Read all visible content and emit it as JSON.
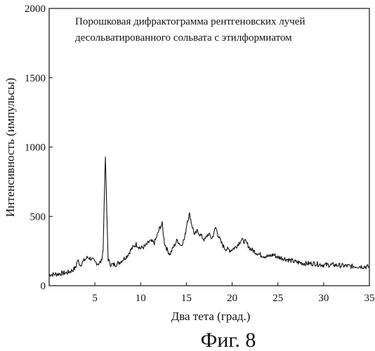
{
  "figure_caption": "Фиг. 8",
  "chart_data": {
    "type": "line",
    "title": "",
    "annotation": [
      "Порошковая дифрактограмма рентгеновских лучей",
      "десольватированного сольвата с этилформиатом"
    ],
    "xlabel": "Два тета (град.)",
    "ylabel": "Интенсивность (импульсы)",
    "xlim": [
      0,
      35
    ],
    "ylim": [
      0,
      2000
    ],
    "xticks": [
      5,
      10,
      15,
      20,
      25,
      30,
      35
    ],
    "yticks": [
      0,
      500,
      1000,
      1500,
      2000
    ],
    "grid": false,
    "legend": "none",
    "series": [
      {
        "color": "#111111",
        "x": [
          0,
          1,
          2,
          2.5,
          2.9,
          3.1,
          3.4,
          3.8,
          4.2,
          4.6,
          5.0,
          5.4,
          5.7,
          5.9,
          6.05,
          6.15,
          6.3,
          6.45,
          6.7,
          7.0,
          7.5,
          8.0,
          8.5,
          9.0,
          9.5,
          10.0,
          10.5,
          11.0,
          11.5,
          11.8,
          12.1,
          12.35,
          12.6,
          12.9,
          13.2,
          13.6,
          14.0,
          14.4,
          14.8,
          15.1,
          15.35,
          15.6,
          15.9,
          16.2,
          16.6,
          17.0,
          17.4,
          17.8,
          18.2,
          18.5,
          18.8,
          19.2,
          19.8,
          20.4,
          21.0,
          21.5,
          22.0,
          22.5,
          23.0,
          23.5,
          24.0,
          24.5,
          25.0,
          25.5,
          26.0,
          26.5,
          27,
          28,
          29,
          30,
          31,
          32,
          33,
          34,
          35
        ],
        "y": [
          80,
          85,
          95,
          110,
          130,
          185,
          150,
          180,
          205,
          195,
          170,
          160,
          175,
          260,
          700,
          930,
          520,
          190,
          155,
          150,
          160,
          185,
          215,
          265,
          300,
          270,
          285,
          320,
          310,
          360,
          420,
          445,
          310,
          260,
          225,
          280,
          330,
          290,
          340,
          470,
          515,
          440,
          365,
          395,
          360,
          330,
          375,
          340,
          420,
          360,
          310,
          270,
          255,
          280,
          330,
          315,
          265,
          245,
          225,
          215,
          210,
          225,
          205,
          200,
          190,
          180,
          170,
          160,
          160,
          150,
          150,
          145,
          140,
          140,
          135
        ]
      }
    ]
  }
}
